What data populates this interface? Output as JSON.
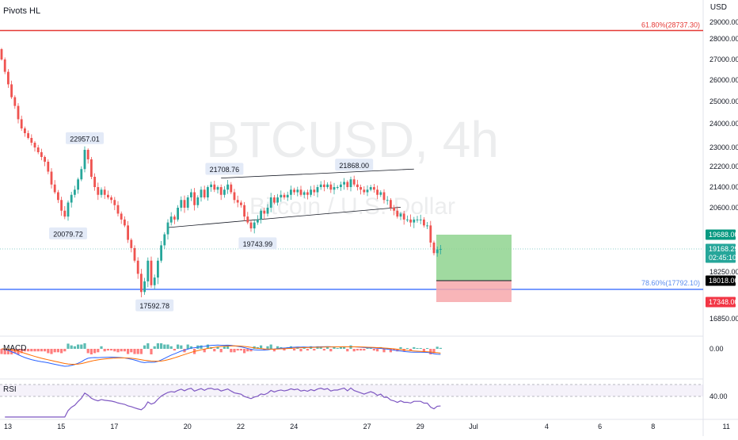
{
  "indicator_title": "Pivots HL",
  "currency": "USD",
  "watermark": {
    "symbol": "BTCUSD, 4h",
    "name": "Bitcoin / U.S. Dollar"
  },
  "fib_top": {
    "label": "61.80%(28737.30)",
    "value": 28737.3,
    "color": "#e53935"
  },
  "fib_bottom": {
    "label": "78.60%(17792.10)",
    "value": 17792.1,
    "color": "#2962ff"
  },
  "price_axis_ticks": [
    29000,
    28000,
    27000,
    26000,
    25000,
    24000,
    23000,
    22200,
    21400,
    20600,
    18250,
    16850
  ],
  "price_axis_tick_labels": [
    "29000.00",
    "28000.00",
    "27000.00",
    "26000.00",
    "25000.00",
    "24000.00",
    "23000.00",
    "22200.00",
    "21400.00",
    "20600.00",
    "18250.00",
    "16850.00"
  ],
  "price_tags": [
    {
      "label": "19688.00",
      "value": 19688.0,
      "bg": "#089981",
      "fg": "#ffffff"
    },
    {
      "label": "19168.29",
      "sub": "02:45:10",
      "value": 19168.29,
      "bg": "#26a69a",
      "fg": "#ffffff"
    },
    {
      "label": "18018.00",
      "value": 18018.0,
      "bg": "#000000",
      "fg": "#ffffff"
    },
    {
      "label": "17348.00",
      "value": 17348.0,
      "bg": "#f23645",
      "fg": "#ffffff"
    }
  ],
  "pivot_labels": [
    {
      "label": "22957.01",
      "value": 22957.01,
      "bar": 25,
      "pos": "above"
    },
    {
      "label": "20079.72",
      "value": 20079.72,
      "bar": 20,
      "pos": "below"
    },
    {
      "label": "21708.76",
      "value": 21708.76,
      "bar": 67,
      "pos": "above"
    },
    {
      "label": "21868.00",
      "value": 21868.0,
      "bar": 106,
      "pos": "above"
    },
    {
      "label": "19743.99",
      "value": 19743.99,
      "bar": 77,
      "pos": "below"
    },
    {
      "label": "17592.78",
      "value": 17592.78,
      "bar": 46,
      "pos": "below"
    }
  ],
  "x_axis": {
    "labels": [
      "13",
      "15",
      "17",
      "20",
      "22",
      "24",
      "27",
      "29",
      "Jul",
      "4",
      "6",
      "8",
      "11"
    ],
    "bars": [
      0,
      16,
      32,
      54,
      70,
      86,
      108,
      124,
      140,
      162,
      178,
      194,
      216
    ]
  },
  "macd": {
    "title": "MACD",
    "tick_label": "0.00"
  },
  "rsi": {
    "title": "RSI",
    "tick_label": "40.00",
    "band_upper": 70,
    "band_lower": 30
  },
  "position": {
    "entry": 18018.0,
    "target": 19688.0,
    "stop": 17348.0,
    "profit_color": "#8fd48f",
    "loss_color": "#f7a8ab"
  },
  "channel": [
    {
      "from": [
        66,
        21750
      ],
      "to": [
        124,
        22100
      ]
    },
    {
      "from": [
        50,
        19930
      ],
      "to": [
        120,
        20620
      ]
    }
  ],
  "colors": {
    "up": "#26a69a",
    "down": "#ef5350"
  },
  "chart_data": {
    "type": "candlestick",
    "title": "BTCUSD, 4h",
    "ylabel": "USD",
    "ylim": [
      16300,
      29300
    ],
    "opens": [
      27500,
      27000,
      26400,
      25800,
      25200,
      24800,
      24200,
      23800,
      23600,
      23400,
      23200,
      23000,
      22800,
      22600,
      22400,
      22000,
      21500,
      21200,
      20900,
      20500,
      20300,
      20800,
      21100,
      21300,
      21700,
      22100,
      22900,
      22500,
      21800,
      21400,
      21100,
      21300,
      21100,
      21000,
      20900,
      20700,
      20400,
      20200,
      20000,
      19500,
      19200,
      18700,
      18200,
      17700,
      18000,
      18700,
      17900,
      18100,
      18700,
      19300,
      19700,
      20100,
      20300,
      20200,
      20600,
      20900,
      20600,
      21000,
      21200,
      20700,
      21000,
      21300,
      21000,
      21400,
      21500,
      21300,
      21400,
      21100,
      21300,
      21500,
      21200,
      20900,
      20800,
      20700,
      20300,
      20100,
      19900,
      20100,
      20200,
      20500,
      20400,
      20600,
      21000,
      20800,
      21000,
      21100,
      21000,
      21100,
      21300,
      21200,
      21300,
      21100,
      21200,
      21100,
      21300,
      21200,
      21400,
      21500,
      21400,
      21500,
      21300,
      21400,
      21400,
      21500,
      21600,
      21400,
      21700,
      21500,
      21400,
      21300,
      21200,
      21300,
      21400,
      21300,
      21100,
      21200,
      20900,
      20900,
      20600,
      20500,
      20300,
      20400,
      20200,
      20200,
      20100,
      20200,
      20200,
      20200,
      20000,
      20000,
      19400,
      19000,
      19150
    ],
    "closes": [
      27000,
      26400,
      25800,
      25200,
      24800,
      24200,
      23800,
      23600,
      23400,
      23200,
      23000,
      22800,
      22600,
      22400,
      22000,
      21500,
      21200,
      20900,
      20500,
      20300,
      20800,
      21100,
      21300,
      21700,
      22100,
      22900,
      22500,
      21800,
      21400,
      21100,
      21300,
      21100,
      21000,
      20900,
      20700,
      20400,
      20200,
      20000,
      19500,
      19200,
      18700,
      18200,
      17700,
      18000,
      18700,
      17900,
      18100,
      18700,
      19300,
      19700,
      20100,
      20300,
      20200,
      20600,
      20900,
      20600,
      21000,
      21200,
      20700,
      21000,
      21300,
      21000,
      21400,
      21500,
      21300,
      21400,
      21100,
      21300,
      21500,
      21200,
      20900,
      20800,
      20700,
      20300,
      20100,
      19900,
      20100,
      20200,
      20500,
      20400,
      20600,
      21000,
      20800,
      21000,
      21100,
      21000,
      21100,
      21300,
      21200,
      21300,
      21100,
      21200,
      21100,
      21300,
      21200,
      21400,
      21500,
      21400,
      21500,
      21300,
      21400,
      21400,
      21500,
      21600,
      21400,
      21700,
      21500,
      21400,
      21300,
      21200,
      21300,
      21400,
      21300,
      21100,
      21200,
      20900,
      20900,
      20600,
      20500,
      20300,
      20400,
      20200,
      20200,
      20100,
      20200,
      20200,
      20200,
      20000,
      20000,
      19400,
      19000,
      19150,
      19168
    ]
  }
}
